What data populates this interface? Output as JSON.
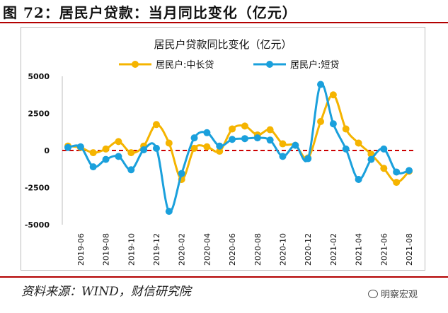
{
  "figure": {
    "title": "图 72：居民户贷款：当月同比变化（亿元）",
    "source": "资料来源：WIND，财信研究院",
    "watermark": "明察宏观"
  },
  "chart_data": {
    "type": "line",
    "title": "居民户贷款同比变化（亿元）",
    "xlabel": "",
    "ylabel": "",
    "ylim": [
      -5000,
      5000
    ],
    "yticks": [
      5000,
      2500,
      0,
      -2500,
      -5000
    ],
    "ytick_labels": [
      "5000",
      "2500",
      "0",
      "-2500",
      "-5000"
    ],
    "categories": [
      "2019-05",
      "2019-06",
      "2019-07",
      "2019-08",
      "2019-09",
      "2019-10",
      "2019-11",
      "2019-12",
      "2020-01",
      "2020-02",
      "2020-03",
      "2020-04",
      "2020-05",
      "2020-06",
      "2020-07",
      "2020-08",
      "2020-09",
      "2020-10",
      "2020-11",
      "2020-12",
      "2021-01",
      "2021-02",
      "2021-03",
      "2021-04",
      "2021-05",
      "2021-06",
      "2021-07",
      "2021-08"
    ],
    "xtick_labels": [
      "2019-06",
      "2019-08",
      "2019-10",
      "2019-12",
      "2020-02",
      "2020-04",
      "2020-06",
      "2020-08",
      "2020-10",
      "2020-12",
      "2021-02",
      "2021-04",
      "2021-06",
      "2021-08"
    ],
    "zero_line_color": "#cc0000",
    "series": [
      {
        "name": "居民户:中长贷",
        "color": "#f5b400",
        "values": [
          300,
          200,
          -150,
          100,
          600,
          -150,
          300,
          1750,
          500,
          -1950,
          150,
          250,
          -50,
          1450,
          1650,
          1050,
          1400,
          450,
          350,
          -500,
          1950,
          3750,
          1450,
          500,
          -250,
          -1200,
          -2150,
          -1400
        ]
      },
      {
        "name": "居民户:短贷",
        "color": "#1aa0dc",
        "values": [
          200,
          250,
          -1100,
          -600,
          -400,
          -1300,
          50,
          150,
          -4100,
          -1550,
          850,
          1200,
          300,
          750,
          800,
          850,
          700,
          -400,
          350,
          -550,
          4450,
          1800,
          100,
          -1950,
          -600,
          100,
          -1450,
          -1350
        ]
      }
    ]
  }
}
